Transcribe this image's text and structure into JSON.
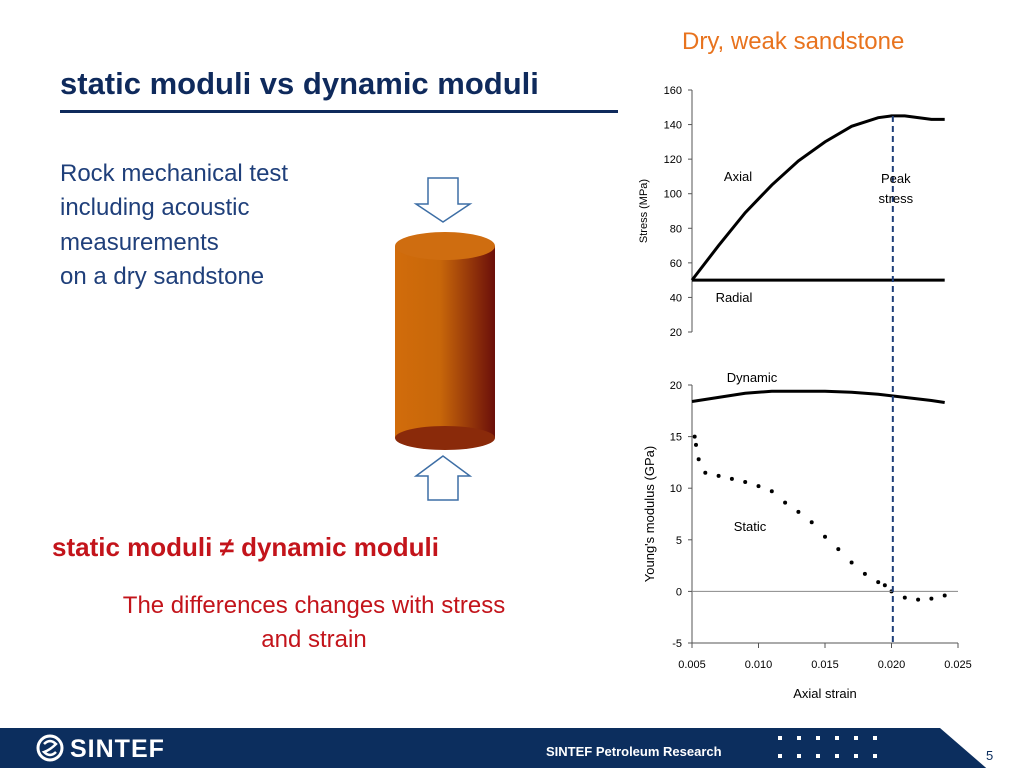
{
  "slide": {
    "title": "static moduli vs dynamic moduli",
    "subtitle": "Dry, weak sandstone",
    "body_lines": [
      "Rock mechanical test",
      "including acoustic",
      "measurements",
      "on a dry sandstone"
    ],
    "neq_statement": "static moduli ≠ dynamic moduli",
    "difference_lines": [
      "The differences changes with stress",
      "and strain"
    ],
    "colors": {
      "title": "#0f2a5c",
      "subtitle": "#e8731e",
      "body": "#1f3f7a",
      "accent_red": "#c3141b",
      "cylinder": "#c8670a",
      "footer": "#0c2e5e"
    },
    "icons": [
      "down-arrow-icon",
      "up-arrow-icon",
      "sintef-logo-icon"
    ]
  },
  "footer": {
    "logo": "SINTEF",
    "label": "SINTEF Petroleum Research",
    "page": "5"
  },
  "chart_data": [
    {
      "type": "line",
      "ylabel": "Stress (MPa)",
      "ylim": [
        20,
        160
      ],
      "yticks": [
        20,
        40,
        60,
        80,
        100,
        120,
        140,
        160
      ],
      "xlim": [
        0.005,
        0.025
      ],
      "grid": false,
      "series": [
        {
          "name": "Axial",
          "x": [
            0.005,
            0.007,
            0.009,
            0.011,
            0.013,
            0.015,
            0.017,
            0.019,
            0.02,
            0.021,
            0.022,
            0.023,
            0.024
          ],
          "y": [
            50,
            70,
            89,
            105,
            119,
            130,
            139,
            144,
            145,
            145,
            144,
            143,
            143
          ]
        },
        {
          "name": "Radial",
          "x": [
            0.005,
            0.024
          ],
          "y": [
            50,
            50
          ]
        }
      ],
      "annotations": [
        {
          "text": "Peak stress",
          "lines": [
            "Peak",
            "stress"
          ],
          "x": 0.0201
        }
      ]
    },
    {
      "type": "scatter",
      "xlabel": "Axial strain",
      "ylabel": "Young's modulus (GPa)",
      "ylim": [
        -5,
        20
      ],
      "yticks": [
        -5,
        0,
        5,
        10,
        15,
        20
      ],
      "xlim": [
        0.005,
        0.025
      ],
      "xticks": [
        "0.005",
        "0.010",
        "0.015",
        "0.020",
        "0.025"
      ],
      "grid": false,
      "series": [
        {
          "name": "Dynamic",
          "x": [
            0.005,
            0.007,
            0.009,
            0.011,
            0.013,
            0.015,
            0.017,
            0.019,
            0.021,
            0.023,
            0.024
          ],
          "y": [
            18.4,
            18.8,
            19.2,
            19.4,
            19.4,
            19.4,
            19.3,
            19.1,
            18.8,
            18.5,
            18.3
          ]
        },
        {
          "name": "Static",
          "x": [
            0.0052,
            0.0053,
            0.0055,
            0.006,
            0.007,
            0.008,
            0.009,
            0.01,
            0.011,
            0.012,
            0.013,
            0.014,
            0.015,
            0.016,
            0.017,
            0.018,
            0.019,
            0.0195,
            0.02,
            0.021,
            0.022,
            0.023,
            0.024
          ],
          "y": [
            15,
            14.2,
            12.8,
            11.5,
            11.2,
            10.9,
            10.6,
            10.2,
            9.7,
            8.6,
            7.7,
            6.7,
            5.3,
            4.1,
            2.8,
            1.7,
            0.9,
            0.6,
            0.0,
            -0.6,
            -0.8,
            -0.7,
            -0.4
          ]
        }
      ],
      "annotations": [
        {
          "text": "Peak stress",
          "x": 0.0201
        }
      ]
    }
  ]
}
